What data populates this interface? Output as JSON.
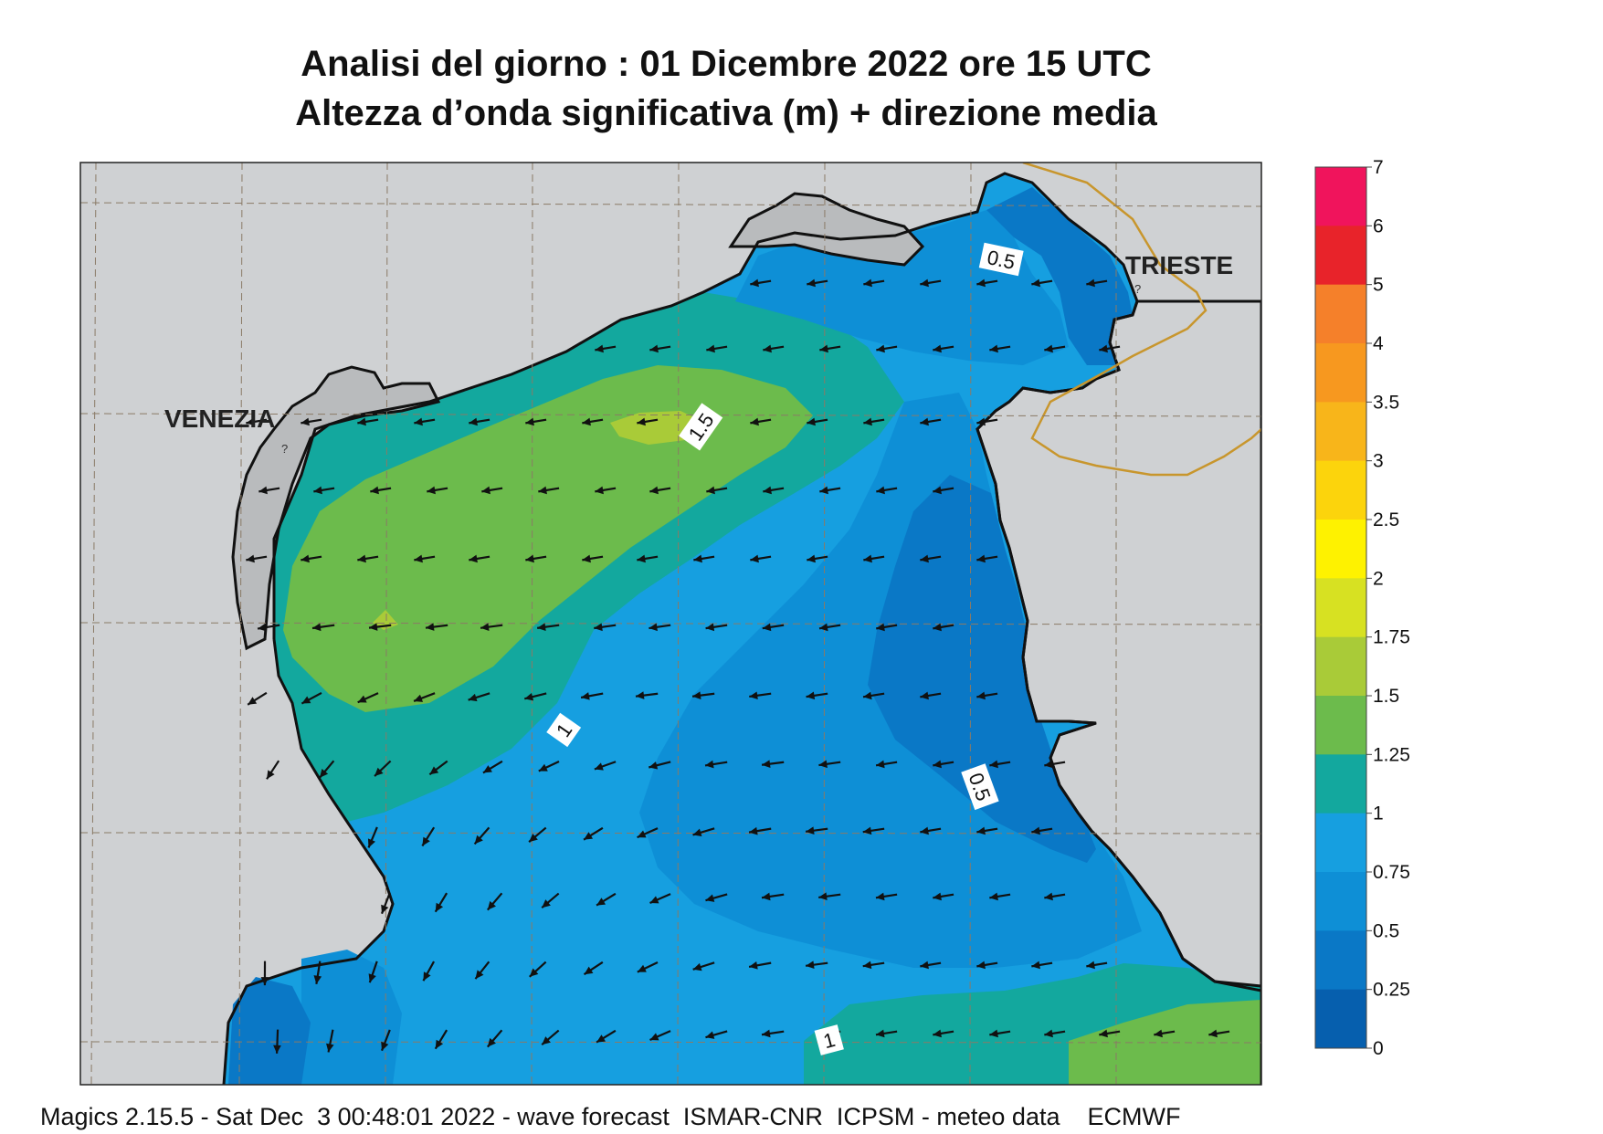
{
  "title": {
    "line1": "Analisi del giorno :  01 Dicembre  2022   ore 15 UTC",
    "line2": "Altezza d’onda significativa (m) + direzione media"
  },
  "places": {
    "venezia": "VENEZIA",
    "trieste": "TRIESTE",
    "marker": "?"
  },
  "contour_labels": [
    "0.5",
    "1.5",
    "1",
    "0.5",
    "1"
  ],
  "colorbar": {
    "labels": [
      "7",
      "6",
      "5",
      "4",
      "3.5",
      "3",
      "2.5",
      "2",
      "1.75",
      "1.5",
      "1.25",
      "1",
      "0.75",
      "0.5",
      "0.25",
      "0"
    ],
    "colors": [
      "#f0145c",
      "#e8232a",
      "#f5802a",
      "#f7981f",
      "#f8b51a",
      "#fcd40c",
      "#fef200",
      "#d7e122",
      "#a9cb38",
      "#6cbb4c",
      "#13a89e",
      "#169fe0",
      "#0e8fd6",
      "#0a78c6",
      "#065fae"
    ]
  },
  "field_colors": {
    "land": "#cfd1d3",
    "lagoon_shade": "#b9bbbd",
    "border": "#c8962d",
    "sea_lowest": "#065fae",
    "sea_low": "#0a78c6",
    "sea_mid": "#0e8fd6",
    "sea_high": "#169fe0",
    "sea_1_125": "#13a89e",
    "sea_125_15": "#6cbb4c",
    "sea_15_175": "#a9cb38"
  },
  "arrows": {
    "direction": "toward west-southwest",
    "color": "#111111"
  },
  "footer": "Magics 2.15.5 - Sat Dec  3 00:48:01 2022 - wave forecast  ISMAR-CNR  ICPSM - meteo data    ECMWF"
}
